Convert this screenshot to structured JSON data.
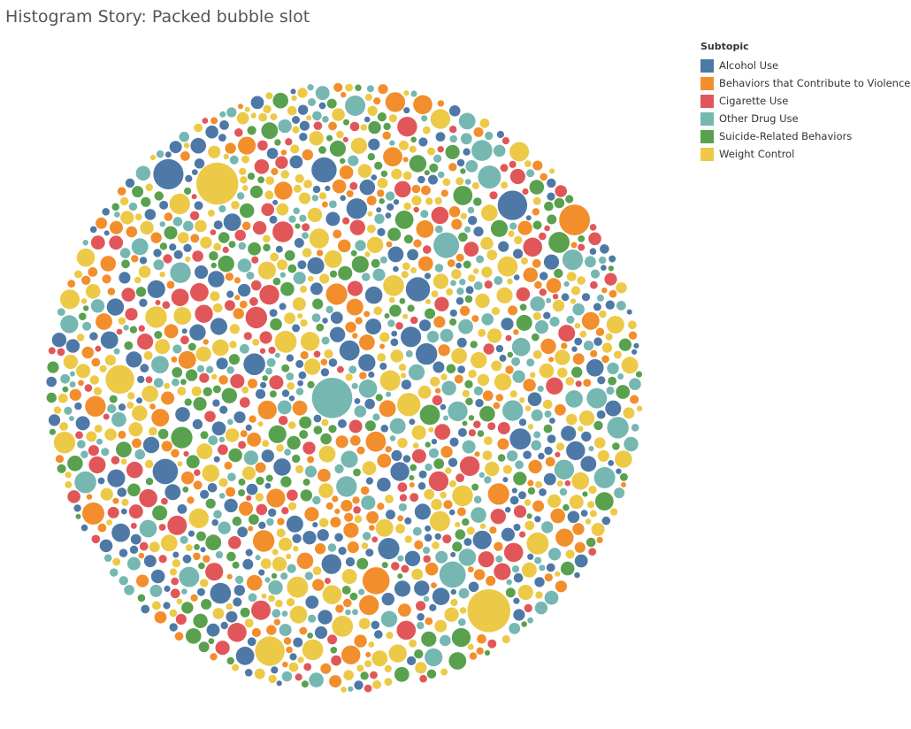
{
  "title": "Histogram Story: Packed bubble slot",
  "legend": {
    "title": "Subtopic",
    "items": [
      {
        "label": "Alcohol Use",
        "color": "#4e79a7"
      },
      {
        "label": "Behaviors that Contribute to Violence",
        "color": "#f28e2b"
      },
      {
        "label": "Cigarette Use",
        "color": "#e15759"
      },
      {
        "label": "Other Drug Use",
        "color": "#76b7b2"
      },
      {
        "label": "Suicide-Related Behaviors",
        "color": "#59a14f"
      },
      {
        "label": "Weight Control",
        "color": "#edc948"
      }
    ]
  },
  "chart_data": {
    "type": "packed-bubble",
    "categories": [
      "Alcohol Use",
      "Behaviors that Contribute to Violence",
      "Cigarette Use",
      "Other Drug Use",
      "Suicide-Related Behaviors",
      "Weight Control"
    ],
    "colors": [
      "#4e79a7",
      "#f28e2b",
      "#e15759",
      "#76b7b2",
      "#59a14f",
      "#edc948"
    ],
    "legend_position": "top-right"
  }
}
